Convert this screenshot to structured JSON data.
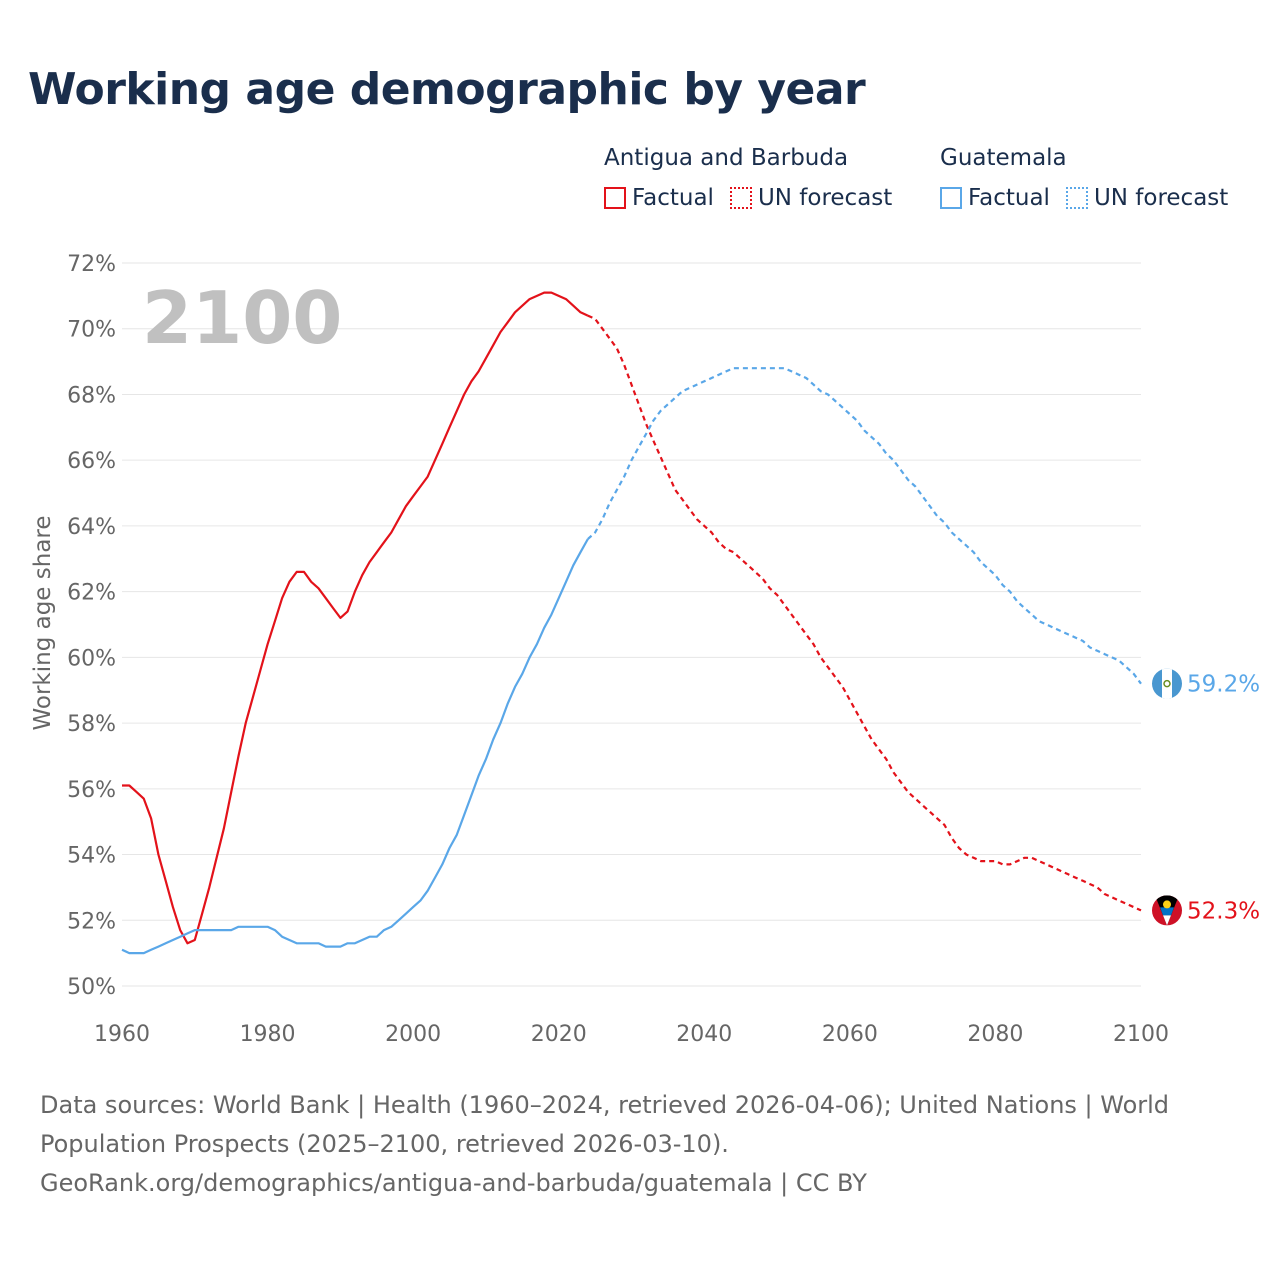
{
  "title": "Working age demographic by year",
  "legend": {
    "groups": [
      {
        "name": "Antigua and Barbuda",
        "factual": "Factual",
        "forecast": "UN forecast",
        "color": "#e3121a"
      },
      {
        "name": "Guatemala",
        "factual": "Factual",
        "forecast": "UN forecast",
        "color": "#5aa7e8"
      }
    ]
  },
  "year_watermark": "2100",
  "footer": {
    "line1": "Data sources: World Bank | Health (1960–2024, retrieved 2026-04-06); United Nations | World",
    "line2": "Population Prospects (2025–2100, retrieved 2026-03-10).",
    "line3": "GeoRank.org/demographics/antigua-and-barbuda/guatemala | CC BY"
  },
  "chart_data": {
    "type": "line",
    "title": "Working age demographic by year",
    "xlabel": "",
    "ylabel": "Working age share",
    "xlim": [
      1960,
      2100
    ],
    "ylim": [
      50,
      72
    ],
    "x_ticks": [
      1960,
      1980,
      2000,
      2020,
      2040,
      2060,
      2080,
      2100
    ],
    "y_ticks": [
      50,
      52,
      54,
      56,
      58,
      60,
      62,
      64,
      66,
      68,
      70,
      72
    ],
    "y_tick_labels": [
      "50%",
      "52%",
      "54%",
      "56%",
      "58%",
      "60%",
      "62%",
      "64%",
      "66%",
      "68%",
      "70%",
      "72%"
    ],
    "grid": true,
    "factual_range": [
      1960,
      2024
    ],
    "forecast_range": [
      2025,
      2100
    ],
    "series": [
      {
        "name": "Antigua and Barbuda",
        "color": "#e3121a",
        "end_label": "52.3%",
        "points": [
          [
            1960,
            56.1
          ],
          [
            1961,
            56.1
          ],
          [
            1962,
            55.9
          ],
          [
            1963,
            55.7
          ],
          [
            1964,
            55.1
          ],
          [
            1965,
            54.0
          ],
          [
            1966,
            53.2
          ],
          [
            1967,
            52.4
          ],
          [
            1968,
            51.7
          ],
          [
            1969,
            51.3
          ],
          [
            1970,
            51.4
          ],
          [
            1971,
            52.2
          ],
          [
            1972,
            53.0
          ],
          [
            1973,
            53.9
          ],
          [
            1974,
            54.8
          ],
          [
            1975,
            55.9
          ],
          [
            1976,
            57.0
          ],
          [
            1977,
            58.0
          ],
          [
            1978,
            58.8
          ],
          [
            1979,
            59.6
          ],
          [
            1980,
            60.4
          ],
          [
            1981,
            61.1
          ],
          [
            1982,
            61.8
          ],
          [
            1983,
            62.3
          ],
          [
            1984,
            62.6
          ],
          [
            1985,
            62.6
          ],
          [
            1986,
            62.3
          ],
          [
            1987,
            62.1
          ],
          [
            1988,
            61.8
          ],
          [
            1989,
            61.5
          ],
          [
            1990,
            61.2
          ],
          [
            1991,
            61.4
          ],
          [
            1992,
            62.0
          ],
          [
            1993,
            62.5
          ],
          [
            1994,
            62.9
          ],
          [
            1995,
            63.2
          ],
          [
            1996,
            63.5
          ],
          [
            1997,
            63.8
          ],
          [
            1998,
            64.2
          ],
          [
            1999,
            64.6
          ],
          [
            2000,
            64.9
          ],
          [
            2001,
            65.2
          ],
          [
            2002,
            65.5
          ],
          [
            2003,
            66.0
          ],
          [
            2004,
            66.5
          ],
          [
            2005,
            67.0
          ],
          [
            2006,
            67.5
          ],
          [
            2007,
            68.0
          ],
          [
            2008,
            68.4
          ],
          [
            2009,
            68.7
          ],
          [
            2010,
            69.1
          ],
          [
            2011,
            69.5
          ],
          [
            2012,
            69.9
          ],
          [
            2013,
            70.2
          ],
          [
            2014,
            70.5
          ],
          [
            2015,
            70.7
          ],
          [
            2016,
            70.9
          ],
          [
            2017,
            71.0
          ],
          [
            2018,
            71.1
          ],
          [
            2019,
            71.1
          ],
          [
            2020,
            71.0
          ],
          [
            2021,
            70.9
          ],
          [
            2022,
            70.7
          ],
          [
            2023,
            70.5
          ],
          [
            2024,
            70.4
          ],
          [
            2025,
            70.3
          ],
          [
            2026,
            70.0
          ],
          [
            2027,
            69.7
          ],
          [
            2028,
            69.4
          ],
          [
            2029,
            68.9
          ],
          [
            2030,
            68.3
          ],
          [
            2031,
            67.7
          ],
          [
            2032,
            67.1
          ],
          [
            2033,
            66.6
          ],
          [
            2034,
            66.1
          ],
          [
            2035,
            65.6
          ],
          [
            2036,
            65.1
          ],
          [
            2037,
            64.8
          ],
          [
            2038,
            64.5
          ],
          [
            2039,
            64.2
          ],
          [
            2040,
            64.0
          ],
          [
            2041,
            63.8
          ],
          [
            2042,
            63.5
          ],
          [
            2043,
            63.3
          ],
          [
            2044,
            63.2
          ],
          [
            2045,
            63.0
          ],
          [
            2046,
            62.8
          ],
          [
            2047,
            62.6
          ],
          [
            2048,
            62.4
          ],
          [
            2049,
            62.1
          ],
          [
            2050,
            61.9
          ],
          [
            2051,
            61.6
          ],
          [
            2052,
            61.3
          ],
          [
            2053,
            61.0
          ],
          [
            2054,
            60.7
          ],
          [
            2055,
            60.4
          ],
          [
            2056,
            60.0
          ],
          [
            2057,
            59.7
          ],
          [
            2058,
            59.4
          ],
          [
            2059,
            59.1
          ],
          [
            2060,
            58.7
          ],
          [
            2061,
            58.3
          ],
          [
            2062,
            57.9
          ],
          [
            2063,
            57.5
          ],
          [
            2064,
            57.2
          ],
          [
            2065,
            56.9
          ],
          [
            2066,
            56.5
          ],
          [
            2067,
            56.2
          ],
          [
            2068,
            55.9
          ],
          [
            2069,
            55.7
          ],
          [
            2070,
            55.5
          ],
          [
            2071,
            55.3
          ],
          [
            2072,
            55.1
          ],
          [
            2073,
            54.9
          ],
          [
            2074,
            54.5
          ],
          [
            2075,
            54.2
          ],
          [
            2076,
            54.0
          ],
          [
            2077,
            53.9
          ],
          [
            2078,
            53.8
          ],
          [
            2079,
            53.8
          ],
          [
            2080,
            53.8
          ],
          [
            2081,
            53.7
          ],
          [
            2082,
            53.7
          ],
          [
            2083,
            53.8
          ],
          [
            2084,
            53.9
          ],
          [
            2085,
            53.9
          ],
          [
            2086,
            53.8
          ],
          [
            2087,
            53.7
          ],
          [
            2088,
            53.6
          ],
          [
            2089,
            53.5
          ],
          [
            2090,
            53.4
          ],
          [
            2091,
            53.3
          ],
          [
            2092,
            53.2
          ],
          [
            2093,
            53.1
          ],
          [
            2094,
            53.0
          ],
          [
            2095,
            52.8
          ],
          [
            2096,
            52.7
          ],
          [
            2097,
            52.6
          ],
          [
            2098,
            52.5
          ],
          [
            2099,
            52.4
          ],
          [
            2100,
            52.3
          ]
        ]
      },
      {
        "name": "Guatemala",
        "color": "#5aa7e8",
        "end_label": "59.2%",
        "points": [
          [
            1960,
            51.1
          ],
          [
            1961,
            51.0
          ],
          [
            1962,
            51.0
          ],
          [
            1963,
            51.0
          ],
          [
            1964,
            51.1
          ],
          [
            1965,
            51.2
          ],
          [
            1966,
            51.3
          ],
          [
            1967,
            51.4
          ],
          [
            1968,
            51.5
          ],
          [
            1969,
            51.6
          ],
          [
            1970,
            51.7
          ],
          [
            1971,
            51.7
          ],
          [
            1972,
            51.7
          ],
          [
            1973,
            51.7
          ],
          [
            1974,
            51.7
          ],
          [
            1975,
            51.7
          ],
          [
            1976,
            51.8
          ],
          [
            1977,
            51.8
          ],
          [
            1978,
            51.8
          ],
          [
            1979,
            51.8
          ],
          [
            1980,
            51.8
          ],
          [
            1981,
            51.7
          ],
          [
            1982,
            51.5
          ],
          [
            1983,
            51.4
          ],
          [
            1984,
            51.3
          ],
          [
            1985,
            51.3
          ],
          [
            1986,
            51.3
          ],
          [
            1987,
            51.3
          ],
          [
            1988,
            51.2
          ],
          [
            1989,
            51.2
          ],
          [
            1990,
            51.2
          ],
          [
            1991,
            51.3
          ],
          [
            1992,
            51.3
          ],
          [
            1993,
            51.4
          ],
          [
            1994,
            51.5
          ],
          [
            1995,
            51.5
          ],
          [
            1996,
            51.7
          ],
          [
            1997,
            51.8
          ],
          [
            1998,
            52.0
          ],
          [
            1999,
            52.2
          ],
          [
            2000,
            52.4
          ],
          [
            2001,
            52.6
          ],
          [
            2002,
            52.9
          ],
          [
            2003,
            53.3
          ],
          [
            2004,
            53.7
          ],
          [
            2005,
            54.2
          ],
          [
            2006,
            54.6
          ],
          [
            2007,
            55.2
          ],
          [
            2008,
            55.8
          ],
          [
            2009,
            56.4
          ],
          [
            2010,
            56.9
          ],
          [
            2011,
            57.5
          ],
          [
            2012,
            58.0
          ],
          [
            2013,
            58.6
          ],
          [
            2014,
            59.1
          ],
          [
            2015,
            59.5
          ],
          [
            2016,
            60.0
          ],
          [
            2017,
            60.4
          ],
          [
            2018,
            60.9
          ],
          [
            2019,
            61.3
          ],
          [
            2020,
            61.8
          ],
          [
            2021,
            62.3
          ],
          [
            2022,
            62.8
          ],
          [
            2023,
            63.2
          ],
          [
            2024,
            63.6
          ],
          [
            2025,
            63.8
          ],
          [
            2026,
            64.2
          ],
          [
            2027,
            64.7
          ],
          [
            2028,
            65.1
          ],
          [
            2029,
            65.5
          ],
          [
            2030,
            66.0
          ],
          [
            2031,
            66.4
          ],
          [
            2032,
            66.8
          ],
          [
            2033,
            67.2
          ],
          [
            2034,
            67.5
          ],
          [
            2035,
            67.7
          ],
          [
            2036,
            67.9
          ],
          [
            2037,
            68.1
          ],
          [
            2038,
            68.2
          ],
          [
            2039,
            68.3
          ],
          [
            2040,
            68.4
          ],
          [
            2041,
            68.5
          ],
          [
            2042,
            68.6
          ],
          [
            2043,
            68.7
          ],
          [
            2044,
            68.8
          ],
          [
            2045,
            68.8
          ],
          [
            2046,
            68.8
          ],
          [
            2047,
            68.8
          ],
          [
            2048,
            68.8
          ],
          [
            2049,
            68.8
          ],
          [
            2050,
            68.8
          ],
          [
            2051,
            68.8
          ],
          [
            2052,
            68.7
          ],
          [
            2053,
            68.6
          ],
          [
            2054,
            68.5
          ],
          [
            2055,
            68.3
          ],
          [
            2056,
            68.1
          ],
          [
            2057,
            68.0
          ],
          [
            2058,
            67.8
          ],
          [
            2059,
            67.6
          ],
          [
            2060,
            67.4
          ],
          [
            2061,
            67.2
          ],
          [
            2062,
            66.9
          ],
          [
            2063,
            66.7
          ],
          [
            2064,
            66.5
          ],
          [
            2065,
            66.2
          ],
          [
            2066,
            66.0
          ],
          [
            2067,
            65.7
          ],
          [
            2068,
            65.4
          ],
          [
            2069,
            65.2
          ],
          [
            2070,
            64.9
          ],
          [
            2071,
            64.6
          ],
          [
            2072,
            64.3
          ],
          [
            2073,
            64.1
          ],
          [
            2074,
            63.8
          ],
          [
            2075,
            63.6
          ],
          [
            2076,
            63.4
          ],
          [
            2077,
            63.2
          ],
          [
            2078,
            62.9
          ],
          [
            2079,
            62.7
          ],
          [
            2080,
            62.5
          ],
          [
            2081,
            62.2
          ],
          [
            2082,
            62.0
          ],
          [
            2083,
            61.7
          ],
          [
            2084,
            61.5
          ],
          [
            2085,
            61.3
          ],
          [
            2086,
            61.1
          ],
          [
            2087,
            61.0
          ],
          [
            2088,
            60.9
          ],
          [
            2089,
            60.8
          ],
          [
            2090,
            60.7
          ],
          [
            2091,
            60.6
          ],
          [
            2092,
            60.5
          ],
          [
            2093,
            60.3
          ],
          [
            2094,
            60.2
          ],
          [
            2095,
            60.1
          ],
          [
            2096,
            60.0
          ],
          [
            2097,
            59.9
          ],
          [
            2098,
            59.7
          ],
          [
            2099,
            59.5
          ],
          [
            2100,
            59.2
          ]
        ]
      }
    ]
  }
}
